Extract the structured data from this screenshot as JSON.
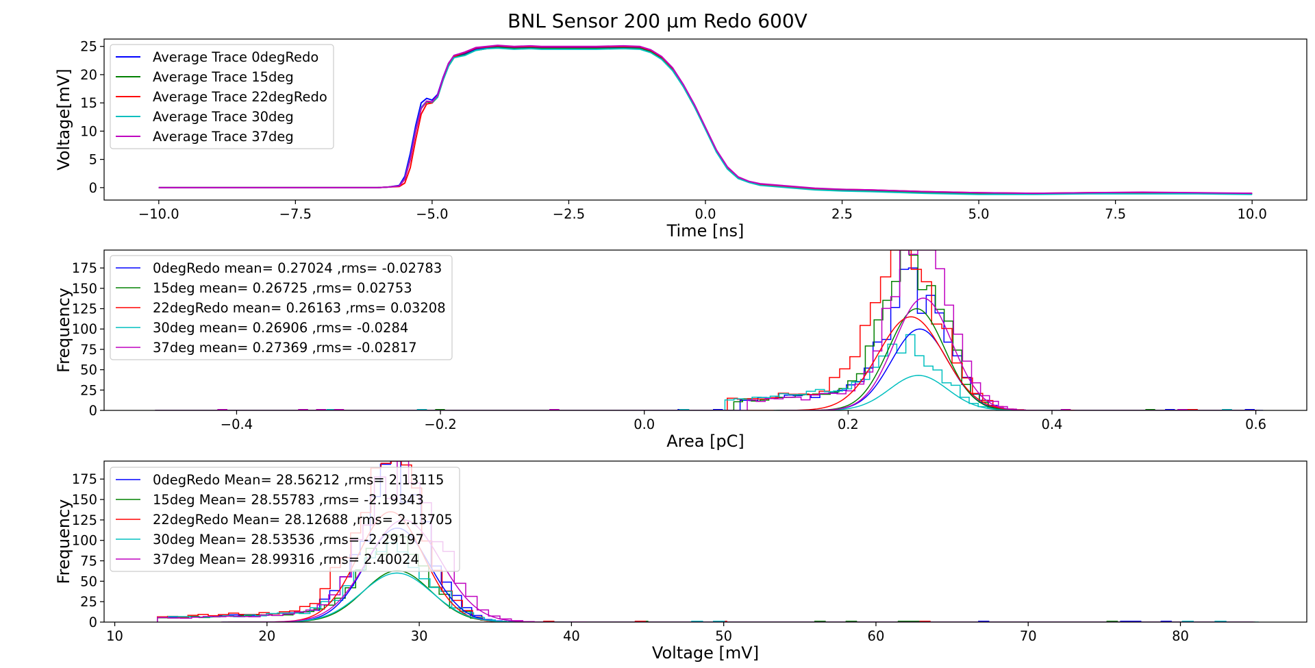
{
  "figure_title": "BNL Sensor 200 μm Redo 600V",
  "chart_data": [
    {
      "type": "line",
      "title": "BNL Sensor 200 μm Redo 600V",
      "xlabel": "Time [ns]",
      "ylabel": "Voltage[mV]",
      "xlim": [
        -11.0,
        11.0
      ],
      "ylim": [
        -2.2,
        26.3
      ],
      "xticks": [
        -10.0,
        -7.5,
        -5.0,
        -2.5,
        0.0,
        2.5,
        5.0,
        7.5,
        10.0
      ],
      "xtick_labels": [
        "−10.0",
        "−7.5",
        "−5.0",
        "−2.5",
        "0.0",
        "2.5",
        "5.0",
        "7.5",
        "10.0"
      ],
      "yticks": [
        0,
        5,
        10,
        15,
        20,
        25
      ],
      "ytick_labels": [
        "0",
        "5",
        "10",
        "15",
        "20",
        "25"
      ],
      "grid": false,
      "legend_position": "upper-left",
      "x": [
        -10.0,
        -6.0,
        -5.8,
        -5.6,
        -5.5,
        -5.4,
        -5.3,
        -5.2,
        -5.1,
        -5.0,
        -4.9,
        -4.8,
        -4.7,
        -4.6,
        -4.5,
        -4.4,
        -4.2,
        -4.0,
        -3.8,
        -3.5,
        -3.2,
        -3.0,
        -2.5,
        -2.0,
        -1.5,
        -1.2,
        -1.0,
        -0.8,
        -0.6,
        -0.4,
        -0.2,
        0.0,
        0.2,
        0.4,
        0.6,
        0.8,
        1.0,
        1.5,
        2.0,
        2.5,
        3.0,
        4.0,
        5.0,
        6.0,
        7.0,
        8.0,
        9.0,
        10.0
      ],
      "series": [
        {
          "name": "Average Trace 0degRedo",
          "color": "#0000ff",
          "values": [
            0,
            0,
            0.1,
            0.4,
            2.0,
            6.0,
            11.0,
            15.0,
            15.8,
            15.5,
            16.5,
            19.5,
            22.0,
            23.3,
            23.5,
            23.7,
            24.5,
            24.8,
            25.0,
            24.8,
            24.9,
            24.8,
            24.8,
            24.8,
            24.9,
            24.8,
            24.2,
            23.0,
            21.0,
            18.0,
            14.5,
            10.5,
            6.5,
            3.5,
            1.8,
            1.0,
            0.6,
            0.2,
            -0.2,
            -0.4,
            -0.5,
            -0.8,
            -1.0,
            -1.1,
            -1.0,
            -0.9,
            -1.0,
            -1.1
          ]
        },
        {
          "name": "Average Trace 15deg",
          "color": "#008000",
          "values": [
            0,
            0,
            0.1,
            0.3,
            1.5,
            5.0,
            10.0,
            14.0,
            15.2,
            15.0,
            16.0,
            19.0,
            21.5,
            23.0,
            23.3,
            23.5,
            24.3,
            24.6,
            24.8,
            24.6,
            24.7,
            24.6,
            24.6,
            24.6,
            24.7,
            24.6,
            24.0,
            22.8,
            20.8,
            17.8,
            14.3,
            10.4,
            6.4,
            3.4,
            1.7,
            1.0,
            0.5,
            0.1,
            -0.2,
            -0.4,
            -0.5,
            -0.8,
            -1.0,
            -1.1,
            -1.0,
            -0.9,
            -1.0,
            -1.1
          ]
        },
        {
          "name": "Average Trace 22degRedo",
          "color": "#ff0000",
          "values": [
            0,
            0,
            0.1,
            0.2,
            0.8,
            3.5,
            8.5,
            13.0,
            14.8,
            15.0,
            16.2,
            19.2,
            21.8,
            23.2,
            23.6,
            23.9,
            24.7,
            24.9,
            25.1,
            24.9,
            25.0,
            24.9,
            24.9,
            24.9,
            25.0,
            24.9,
            24.3,
            23.1,
            21.1,
            18.1,
            14.6,
            10.6,
            6.6,
            3.6,
            1.8,
            1.0,
            0.6,
            0.2,
            -0.2,
            -0.3,
            -0.4,
            -0.7,
            -0.9,
            -1.0,
            -0.9,
            -0.9,
            -1.0,
            -1.0
          ]
        },
        {
          "name": "Average Trace 30deg",
          "color": "#00bfbf",
          "values": [
            0,
            0,
            0.1,
            0.3,
            1.6,
            5.2,
            10.2,
            14.2,
            15.3,
            15.1,
            16.0,
            19.0,
            21.5,
            23.0,
            23.2,
            23.4,
            24.3,
            24.6,
            24.7,
            24.5,
            24.6,
            24.5,
            24.5,
            24.5,
            24.6,
            24.5,
            23.9,
            22.7,
            20.7,
            17.8,
            14.3,
            10.3,
            6.3,
            3.3,
            1.6,
            0.9,
            0.4,
            0.0,
            -0.4,
            -0.6,
            -0.7,
            -1.0,
            -1.2,
            -1.2,
            -1.1,
            -1.1,
            -1.1,
            -1.2
          ]
        },
        {
          "name": "Average Trace 37deg",
          "color": "#bf00bf",
          "values": [
            0,
            0,
            0.1,
            0.3,
            1.5,
            5.0,
            10.0,
            14.0,
            15.3,
            15.2,
            16.3,
            19.4,
            22.0,
            23.4,
            23.7,
            24.0,
            24.8,
            25.0,
            25.2,
            25.0,
            25.1,
            25.0,
            25.0,
            25.0,
            25.1,
            25.0,
            24.4,
            23.2,
            21.2,
            18.2,
            14.7,
            10.7,
            6.7,
            3.7,
            1.9,
            1.1,
            0.7,
            0.3,
            -0.1,
            -0.3,
            -0.4,
            -0.7,
            -0.9,
            -1.0,
            -0.9,
            -0.8,
            -0.9,
            -1.0
          ]
        }
      ]
    },
    {
      "type": "histogram",
      "xlabel": "Area [pC]",
      "ylabel": "Frequency",
      "xlim": [
        -0.53,
        0.65
      ],
      "ylim": [
        0,
        197
      ],
      "xticks": [
        -0.4,
        -0.2,
        0.0,
        0.2,
        0.4,
        0.6
      ],
      "xtick_labels": [
        "−0.4",
        "−0.2",
        "0.0",
        "0.2",
        "0.4",
        "0.6"
      ],
      "yticks": [
        0,
        25,
        50,
        75,
        100,
        125,
        150,
        175
      ],
      "ytick_labels": [
        "0",
        "25",
        "50",
        "75",
        "100",
        "125",
        "150",
        "175"
      ],
      "grid": false,
      "legend_position": "upper-left",
      "x_range": [
        -0.48,
        0.6
      ],
      "series": [
        {
          "name": "0degRedo mean= 0.27024 ,rms= -0.02783",
          "color": "#0000ff",
          "mean": 0.27024,
          "sigma": 0.02783,
          "peak": 100,
          "tail_level": 20,
          "tail_start": 0.09
        },
        {
          "name": "15deg mean= 0.26725 ,rms= 0.02753",
          "color": "#008000",
          "mean": 0.26725,
          "sigma": 0.02753,
          "peak": 125,
          "tail_level": 20,
          "tail_start": 0.09
        },
        {
          "name": "22degRedo mean= 0.26163 ,rms= 0.03208",
          "color": "#ff0000",
          "mean": 0.26163,
          "sigma": 0.03208,
          "peak": 115,
          "tail_level": 22,
          "tail_start": 0.08
        },
        {
          "name": "30deg mean= 0.26906 ,rms= -0.0284",
          "color": "#00bfbf",
          "mean": 0.26906,
          "sigma": 0.0284,
          "peak": 43,
          "tail_level": 22,
          "tail_start": 0.08
        },
        {
          "name": "37deg mean= 0.27369 ,rms= -0.02817",
          "color": "#bf00bf",
          "mean": 0.27369,
          "sigma": 0.02817,
          "peak": 138,
          "tail_level": 18,
          "tail_start": 0.1
        }
      ]
    },
    {
      "type": "histogram",
      "xlabel": "Voltage [mV]",
      "ylabel": "Frequency",
      "xlim": [
        9.3,
        88.3
      ],
      "ylim": [
        0,
        197
      ],
      "xticks": [
        10,
        20,
        30,
        40,
        50,
        60,
        70,
        80
      ],
      "xtick_labels": [
        "10",
        "20",
        "30",
        "40",
        "50",
        "60",
        "70",
        "80"
      ],
      "yticks": [
        0,
        25,
        50,
        75,
        100,
        125,
        150,
        175
      ],
      "ytick_labels": [
        "0",
        "25",
        "50",
        "75",
        "100",
        "125",
        "150",
        "175"
      ],
      "grid": false,
      "legend_position": "upper-left",
      "x_range": [
        12.8,
        84.6
      ],
      "series": [
        {
          "name": "0degRedo Mean= 28.56212 ,rms= 2.13115",
          "color": "#0000ff",
          "mean": 28.56212,
          "sigma": 2.13115,
          "peak": 115,
          "tail_level": 9,
          "tail_start": 13
        },
        {
          "name": "15deg Mean= 28.55783 ,rms= -2.19343",
          "color": "#008000",
          "mean": 28.55783,
          "sigma": 2.19343,
          "peak": 63,
          "tail_level": 9,
          "tail_start": 13
        },
        {
          "name": "22degRedo Mean= 28.12688 ,rms= 2.13705",
          "color": "#ff0000",
          "mean": 28.12688,
          "sigma": 2.13705,
          "peak": 135,
          "tail_level": 11,
          "tail_start": 13
        },
        {
          "name": "30deg Mean= 28.53536 ,rms= -2.29197",
          "color": "#00bfbf",
          "mean": 28.53536,
          "sigma": 2.29197,
          "peak": 60,
          "tail_level": 9,
          "tail_start": 13
        },
        {
          "name": "37deg Mean= 28.99316 ,rms= 2.40024",
          "color": "#bf00bf",
          "mean": 28.99316,
          "sigma": 2.40024,
          "peak": 125,
          "tail_level": 8,
          "tail_start": 13
        }
      ]
    }
  ]
}
